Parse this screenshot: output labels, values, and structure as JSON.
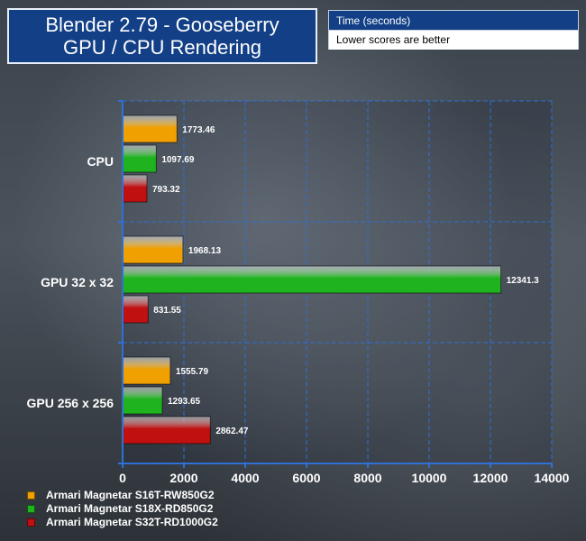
{
  "title": {
    "line1": "Blender 2.79 - Gooseberry",
    "line2": "GPU / CPU Rendering"
  },
  "info": {
    "metric": "Time (seconds)",
    "note": "Lower scores are better"
  },
  "chart_data": {
    "type": "bar",
    "orientation": "horizontal",
    "categories": [
      "CPU",
      "GPU 32 x 32",
      "GPU 256 x 256"
    ],
    "series": [
      {
        "name": "Armari Magnetar S16T-RW850G2",
        "color": "#f0a000",
        "values": [
          1773.46,
          1968.13,
          1555.79
        ]
      },
      {
        "name": "Armari Magnetar S18X-RD850G2",
        "color": "#1fb41f",
        "values": [
          1097.69,
          12341.3,
          1293.65
        ]
      },
      {
        "name": "Armari Magnetar S32T-RD1000G2",
        "color": "#c01010",
        "values": [
          793.32,
          831.55,
          2862.47
        ]
      }
    ],
    "xlim": [
      0,
      14000
    ],
    "xticks": [
      0,
      2000,
      4000,
      6000,
      8000,
      10000,
      12000,
      14000
    ],
    "grid": true,
    "legend_position": "bottom-left"
  }
}
